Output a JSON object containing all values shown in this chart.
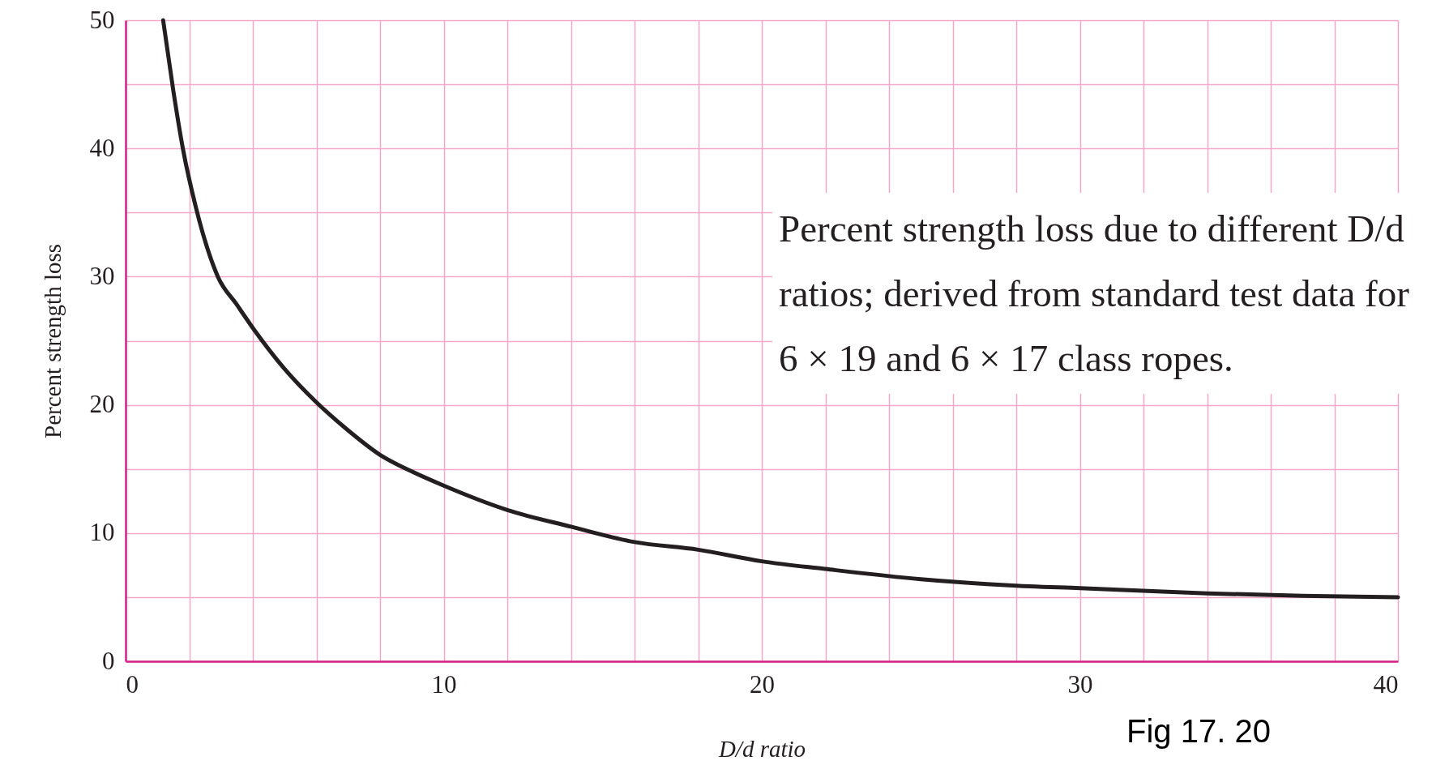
{
  "chart_data": {
    "type": "line",
    "xlabel": "D/d ratio",
    "ylabel": "Percent strength loss",
    "x": [
      1.18,
      1.5,
      1.8,
      2.2,
      2.9,
      3.5,
      4,
      5,
      6,
      7,
      8,
      9,
      10,
      12,
      14,
      16,
      18,
      20,
      22,
      25,
      28,
      30,
      34,
      37,
      40
    ],
    "series": [
      {
        "color": "#231f20",
        "values": [
          50,
          44.5,
          40,
          35.5,
          30,
          27.8,
          26,
          22.8,
          20.2,
          18,
          16.1,
          14.8,
          13.7,
          11.8,
          10.5,
          9.3,
          8.7,
          7.8,
          7.2,
          6.4,
          5.9,
          5.7,
          5.3,
          5.1,
          5.0
        ]
      }
    ],
    "xlim": [
      0,
      40
    ],
    "ylim": [
      0,
      50
    ],
    "xticks": [
      0,
      {
        "value": 2,
        "label": null
      },
      {
        "value": 4,
        "label": null
      },
      {
        "value": 6,
        "label": null
      },
      {
        "value": 8,
        "label": null
      },
      10,
      {
        "value": 12,
        "label": null
      },
      {
        "value": 14,
        "label": null
      },
      {
        "value": 16,
        "label": null
      },
      {
        "value": 18,
        "label": null
      },
      20,
      {
        "value": 22,
        "label": null
      },
      {
        "value": 24,
        "label": null
      },
      {
        "value": 26,
        "label": null
      },
      {
        "value": 28,
        "label": null
      },
      30,
      {
        "value": 32,
        "label": null
      },
      {
        "value": 34,
        "label": null
      },
      {
        "value": 36,
        "label": null
      },
      {
        "value": 38,
        "label": null
      },
      40
    ],
    "yticks": [
      0,
      {
        "value": 5,
        "label": null
      },
      10,
      {
        "value": 15,
        "label": null
      },
      20,
      {
        "value": 25,
        "label": null
      },
      30,
      {
        "value": 35,
        "label": null
      },
      40,
      {
        "value": 45,
        "label": null
      },
      50
    ],
    "grid": true,
    "marker": "none",
    "line_style": "solid",
    "annotations": [
      "Percent strength loss due to different D/d ratios; derived from standard test data for 6 × 19 and 6 × 17 class ropes.",
      "Fig 17. 20"
    ]
  }
}
